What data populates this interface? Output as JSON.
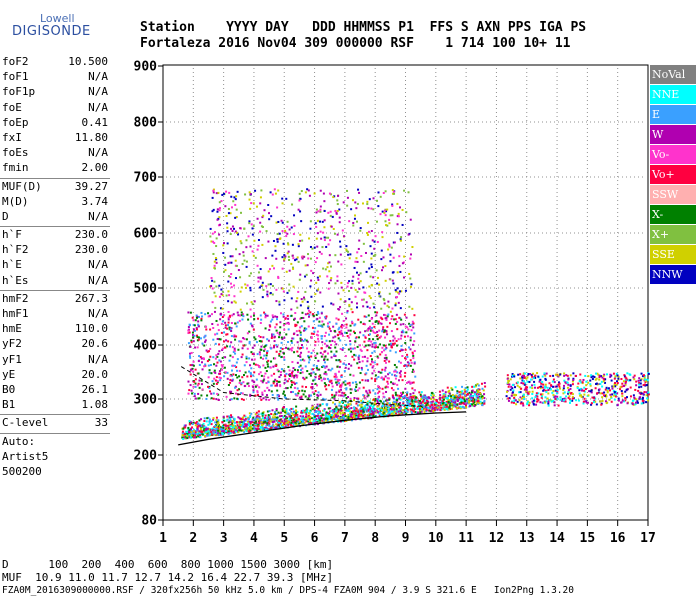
{
  "logo": {
    "brand": "Lowell",
    "name": "DIGISONDE"
  },
  "header": {
    "line1": "Station    YYYY DAY   DDD HHMMSS P1  FFS S AXN PPS IGA PS",
    "line2": "Fortaleza 2016 Nov04 309 000000 RSF    1 714 100 10+ 11"
  },
  "params": [
    {
      "k": "foF2",
      "v": "10.500"
    },
    {
      "k": "foF1",
      "v": "N/A"
    },
    {
      "k": "foF1p",
      "v": "N/A"
    },
    {
      "k": "foE",
      "v": "N/A"
    },
    {
      "k": "foEp",
      "v": "0.41"
    },
    {
      "k": "fxI",
      "v": "11.80"
    },
    {
      "k": "foEs",
      "v": "N/A"
    },
    {
      "k": "fmin",
      "v": "2.00"
    },
    {
      "sep": true
    },
    {
      "k": "MUF(D)",
      "v": "39.27"
    },
    {
      "k": "M(D)",
      "v": "3.74"
    },
    {
      "k": "D",
      "v": "N/A"
    },
    {
      "sep": true
    },
    {
      "k": "h`F",
      "v": "230.0"
    },
    {
      "k": "h`F2",
      "v": "230.0"
    },
    {
      "k": "h`E",
      "v": "N/A"
    },
    {
      "k": "h`Es",
      "v": "N/A"
    },
    {
      "sep": true
    },
    {
      "k": "hmF2",
      "v": "267.3"
    },
    {
      "k": "hmF1",
      "v": "N/A"
    },
    {
      "k": "hmE",
      "v": "110.0"
    },
    {
      "k": "yF2",
      "v": "20.6"
    },
    {
      "k": "yF1",
      "v": "N/A"
    },
    {
      "k": "yE",
      "v": "20.0"
    },
    {
      "k": "B0",
      "v": "26.1"
    },
    {
      "k": "B1",
      "v": "1.08"
    },
    {
      "sep": true
    },
    {
      "k": "C-level",
      "v": "33"
    },
    {
      "sep": true
    },
    {
      "free": "Auto:"
    },
    {
      "free": "Artist5"
    },
    {
      "free": "500200"
    }
  ],
  "legend": [
    {
      "label": "NoVal",
      "color": "#808080"
    },
    {
      "label": "NNE",
      "color": "#00ffff"
    },
    {
      "label": "E",
      "color": "#3aa0ff"
    },
    {
      "label": "W",
      "color": "#b000b0"
    },
    {
      "label": "Vo-",
      "color": "#ff33cc"
    },
    {
      "label": "Vo+",
      "color": "#ff0040"
    },
    {
      "label": "SSW",
      "color": "#ffb0b0"
    },
    {
      "label": "X-",
      "color": "#008000"
    },
    {
      "label": "X+",
      "color": "#80c040"
    },
    {
      "label": "SSE",
      "color": "#d0d000"
    },
    {
      "label": "NNW",
      "color": "#0000c0"
    }
  ],
  "chart_data": {
    "type": "scatter",
    "title": "",
    "xlabel": "",
    "ylabel": "",
    "x_ticks": [
      "1",
      "2",
      "3",
      "4",
      "5",
      "6",
      "7",
      "8",
      "9",
      "10",
      "11",
      "12",
      "13",
      "14",
      "15",
      "16",
      "17"
    ],
    "y_ticks": [
      "80",
      "200",
      "300",
      "400",
      "500",
      "600",
      "700",
      "800",
      "900"
    ],
    "y_tick_values": [
      80,
      200,
      300,
      400,
      500,
      600,
      700,
      800,
      900
    ],
    "xlim": [
      1,
      17
    ],
    "ylim": [
      80,
      900
    ],
    "grid": true,
    "legend_position": "right",
    "trace_bands": [
      {
        "name": "F2 trace band",
        "x_range": [
          1.6,
          11.6
        ],
        "h_low": [
          230,
          290
        ],
        "h_high": [
          240,
          310
        ],
        "colors": [
          "#ff0040",
          "#3aa0ff",
          "#008000",
          "#b000b0",
          "#d0d000",
          "#00ffff"
        ]
      },
      {
        "name": "mid clutter",
        "x_range": [
          1.8,
          9.3
        ],
        "h_low": 300,
        "h_high": 460,
        "colors": [
          "#b000b0",
          "#3aa0ff",
          "#ff33cc",
          "#ff0040",
          "#008000"
        ]
      },
      {
        "name": "upper clutter",
        "x_range": [
          2.5,
          9.2
        ],
        "h_low": 460,
        "h_high": 680,
        "colors": [
          "#d0d000",
          "#80c040",
          "#b000b0",
          "#ff33cc",
          "#0000c0"
        ]
      },
      {
        "name": "spread F region",
        "x_range": [
          12.3,
          17
        ],
        "h_low": 290,
        "h_high": 350,
        "colors": [
          "#0000c0",
          "#ff0040",
          "#00ffff",
          "#d0d000",
          "#b000b0"
        ]
      }
    ],
    "profile_curve": {
      "x": [
        1.5,
        2.5,
        4,
        5.5,
        7,
        8.5,
        10,
        11
      ],
      "y": [
        218,
        228,
        240,
        252,
        262,
        270,
        275,
        277
      ]
    },
    "dashed_curve": {
      "x": [
        1.6,
        3,
        5,
        7,
        8.5,
        9.6
      ],
      "y": [
        360,
        312,
        300,
        297,
        290,
        287
      ]
    }
  },
  "footer": {
    "line1": "D      100  200  400  600  800 1000 1500 3000 [km]",
    "line2": "MUF  10.9 11.0 11.7 12.7 14.2 16.4 22.7 39.3 [MHz]",
    "line3": "FZA0M_2016309000000.RSF / 320fx256h 50 kHz 5.0 km / DPS-4 FZA0M 904 / 3.9 S 321.6 E   Ion2Png 1.3.20"
  }
}
